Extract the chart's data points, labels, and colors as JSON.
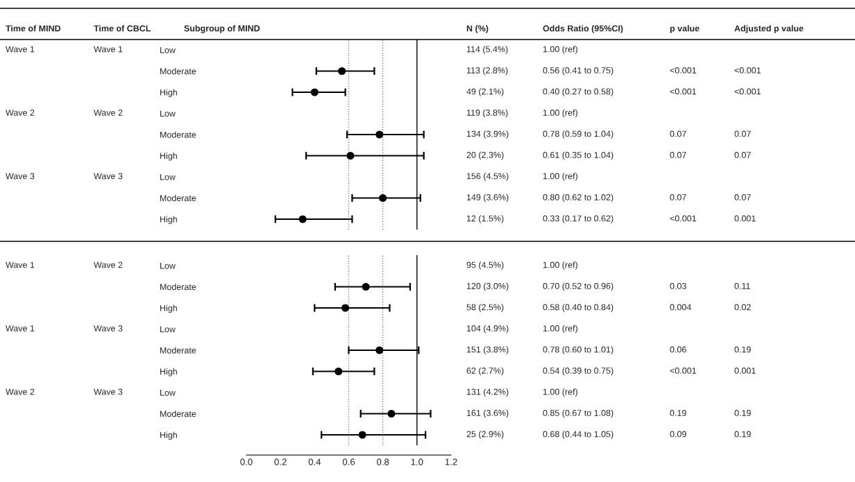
{
  "chart_data": [
    {
      "type": "other",
      "title": "Time of MIND",
      "annotations": [
        "Wave 1",
        "Wave 2",
        "Wave 3",
        "Wave 1",
        "Wave 1",
        "Wave 2"
      ]
    },
    {
      "type": "other",
      "title": "Time of CBCL",
      "annotations": [
        "Wave 1",
        "Wave 2",
        "Wave 3",
        "Wave 2",
        "Wave 3",
        "Wave 3"
      ]
    },
    {
      "type": "scatter",
      "orientation": "horizontal",
      "ylabel": "Subgroup of MIND",
      "categories": [
        "Low",
        "Moderate",
        "High",
        "Low",
        "Moderate",
        "High",
        "Low",
        "Moderate",
        "High"
      ],
      "series": [
        {
          "color": "#000000",
          "values": [
            null,
            0.56,
            0.4,
            null,
            0.78,
            0.61,
            null,
            0.8,
            0.33
          ],
          "errors": [
            null,
            [
              0.41,
              0.75
            ],
            [
              0.27,
              0.58
            ],
            null,
            [
              0.59,
              1.04
            ],
            [
              0.35,
              1.04
            ],
            null,
            [
              0.62,
              1.02
            ],
            [
              0.17,
              0.62
            ]
          ]
        }
      ],
      "marker": "circle",
      "xlim": [
        0,
        1.2
      ],
      "tick_labels": "y",
      "ref_lines": [
        {
          "axis": "x",
          "value": 0.6,
          "color": "#808080",
          "line_style": "dotted"
        },
        {
          "axis": "x",
          "value": 0.8,
          "color": "#808080",
          "line_style": "dotted"
        },
        {
          "axis": "x",
          "value": 1.0,
          "color": "#000000",
          "line_style": "solid"
        }
      ]
    },
    {
      "type": "scatter",
      "orientation": "horizontal",
      "categories": [
        "Low",
        "Moderate",
        "High",
        "Low",
        "Moderate",
        "High",
        "Low",
        "Moderate",
        "High"
      ],
      "series": [
        {
          "color": "#000000",
          "values": [
            null,
            0.7,
            0.58,
            null,
            0.78,
            0.54,
            null,
            0.85,
            0.68
          ],
          "errors": [
            null,
            [
              0.52,
              0.96
            ],
            [
              0.4,
              0.84
            ],
            null,
            [
              0.6,
              1.01
            ],
            [
              0.39,
              0.75
            ],
            null,
            [
              0.67,
              1.08
            ],
            [
              0.44,
              1.05
            ]
          ]
        }
      ],
      "marker": "circle",
      "xlim": [
        0,
        1.2
      ],
      "xticks": [
        {
          "value": 0,
          "label": "0.0"
        },
        {
          "value": 0.2,
          "label": "0.2"
        },
        {
          "value": 0.4,
          "label": "0.4"
        },
        {
          "value": 0.6,
          "label": "0.6"
        },
        {
          "value": 0.8,
          "label": "0.8"
        },
        {
          "value": 1,
          "label": "1.0"
        },
        {
          "value": 1.2,
          "label": "1.2"
        }
      ],
      "ref_lines": [
        {
          "axis": "x",
          "value": 0.6,
          "color": "#808080",
          "line_style": "dotted"
        },
        {
          "axis": "x",
          "value": 0.8,
          "color": "#808080",
          "line_style": "dotted"
        },
        {
          "axis": "x",
          "value": 1.0,
          "color": "#000000",
          "line_style": "solid"
        }
      ]
    },
    {
      "type": "other",
      "title": "N (%)",
      "annotations": [
        "114 (5.4%)",
        "113 (2.8%)",
        "49 (2.1%)",
        "119 (3.8%)",
        "134 (3.9%)",
        "20 (2.3%)",
        "156 (4.5%)",
        "149 (3.6%)",
        "12 (1.5%)",
        "95 (4.5%)",
        "120 (3.0%)",
        "58 (2.5%)",
        "104 (4.9%)",
        "151 (3.8%)",
        "62 (2.7%)",
        "131 (4.2%)",
        "161 (3.6%)",
        "25 (2.9%)"
      ]
    },
    {
      "type": "other",
      "title": "Odds Ratio (95%CI)",
      "annotations": [
        "1.00 (ref)",
        "0.56 (0.41 to 0.75)",
        "0.40 (0.27 to 0.58)",
        "1.00 (ref)",
        "0.78 (0.59 to 1.04)",
        "0.61 (0.35 to 1.04)",
        "1.00 (ref)",
        "0.80 (0.62 to 1.02)",
        "0.33 (0.17 to 0.62)",
        "1.00 (ref)",
        "0.70 (0.52 to 0.96)",
        "0.58 (0.40 to 0.84)",
        "1.00 (ref)",
        "0.78 (0.60 to 1.01)",
        "0.54 (0.39 to 0.75)",
        "1.00 (ref)",
        "0.85 (0.67 to 1.08)",
        "0.68 (0.44 to 1.05)"
      ]
    },
    {
      "type": "other",
      "title": "p value",
      "annotations": [
        "<0.001",
        "<0.001",
        "0.07",
        "0.07",
        "0.07",
        "<0.001",
        "0.03",
        "0.004",
        "0.06",
        "<0.001",
        "0.19",
        "0.09"
      ]
    },
    {
      "type": "other",
      "title": "Adjusted p value",
      "annotations": [
        "<0.001",
        "<0.001",
        "0.07",
        "0.07",
        "0.07",
        "0.001",
        "0.11",
        "0.02",
        "0.19",
        "0.001",
        "0.19",
        "0.19"
      ]
    }
  ]
}
